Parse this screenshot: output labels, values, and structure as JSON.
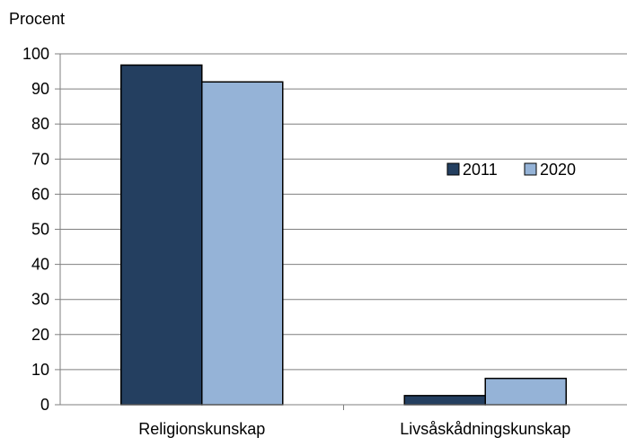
{
  "chart_data": {
    "type": "bar",
    "ylabel": "Procent",
    "xlabel": "",
    "title": "",
    "ylim": [
      0,
      100
    ],
    "yticks": [
      0,
      10,
      20,
      30,
      40,
      50,
      60,
      70,
      80,
      90,
      100
    ],
    "categories": [
      "Religionskunskap",
      "Livsåskådningskunskap"
    ],
    "series": [
      {
        "name": "2011",
        "values": [
          96.8,
          2.6
        ],
        "color": "#243F60"
      },
      {
        "name": "2020",
        "values": [
          92.0,
          7.5
        ],
        "color": "#95B3D7"
      }
    ],
    "grid": true,
    "legend_position": "right"
  }
}
